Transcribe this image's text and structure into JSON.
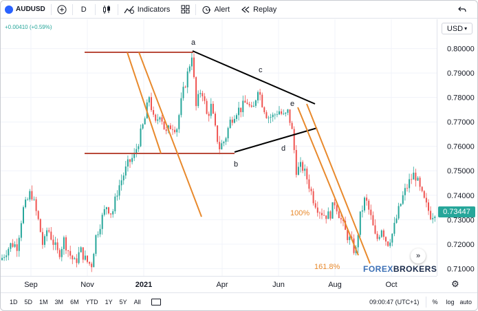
{
  "toolbar": {
    "symbol": "AUDUSD",
    "add_icon": "plus-circle-icon",
    "interval": "D",
    "bar_style_icon": "candles-icon",
    "indicators_label": "Indicators",
    "layouts_icon": "grid-icon",
    "alert_label": "Alert",
    "replay_label": "Replay",
    "undo_icon": "undo-icon"
  },
  "legend": {
    "change": "+0.00410 (+0.59%)"
  },
  "price_axis": {
    "currency": "USD",
    "ticks": [
      "0.80000",
      "0.79000",
      "0.78000",
      "0.77000",
      "0.76000",
      "0.75000",
      "0.74000",
      "0.73000",
      "0.72000",
      "0.71000"
    ],
    "partial_top": "0",
    "last_price": "0.73447"
  },
  "time_axis": {
    "ticks": [
      "Sep",
      "Nov",
      "2021",
      "Apr",
      "Jun",
      "Aug",
      "Oct"
    ]
  },
  "annotations": {
    "a": "a",
    "b": "b",
    "c": "c",
    "d": "d",
    "e": "e",
    "fib_100": "100%",
    "fib_1618": "161.8%"
  },
  "watermark": {
    "part1": "FOREX",
    "part2": "BROKERS"
  },
  "bottom_bar": {
    "ranges": [
      "1D",
      "5D",
      "1M",
      "3M",
      "6M",
      "YTD",
      "1Y",
      "5Y",
      "All"
    ],
    "clock": "09:00:47 (UTC+1)",
    "percent": "%",
    "log": "log",
    "auto": "auto"
  },
  "colors": {
    "up": "#26a69a",
    "down": "#ef5350",
    "horizontal_lines": "#b94a3a",
    "channel_lines": "#e8892c",
    "triangle_lines": "#000000"
  },
  "chart_data": {
    "type": "candlestick",
    "symbol": "AUDUSD",
    "ylim": [
      0.707,
      0.812
    ],
    "close_path": [
      [
        0,
        0.7135
      ],
      [
        8,
        0.7172
      ],
      [
        16,
        0.7203
      ],
      [
        24,
        0.7192
      ],
      [
        32,
        0.7338
      ],
      [
        38,
        0.7371
      ],
      [
        44,
        0.7418
      ],
      [
        50,
        0.7349
      ],
      [
        56,
        0.7281
      ],
      [
        62,
        0.7183
      ],
      [
        68,
        0.727
      ],
      [
        76,
        0.721
      ],
      [
        84,
        0.7155
      ],
      [
        92,
        0.7218
      ],
      [
        100,
        0.7161
      ],
      [
        108,
        0.7121
      ],
      [
        116,
        0.7176
      ],
      [
        124,
        0.7132
      ],
      [
        132,
        0.7114
      ],
      [
        138,
        0.7228
      ],
      [
        146,
        0.7296
      ],
      [
        154,
        0.7358
      ],
      [
        162,
        0.7322
      ],
      [
        170,
        0.7423
      ],
      [
        178,
        0.748
      ],
      [
        186,
        0.7532
      ],
      [
        194,
        0.756
      ],
      [
        202,
        0.7636
      ],
      [
        210,
        0.7716
      ],
      [
        216,
        0.7808
      ],
      [
        224,
        0.7681
      ],
      [
        232,
        0.7742
      ],
      [
        240,
        0.7649
      ],
      [
        248,
        0.7688
      ],
      [
        256,
        0.7674
      ],
      [
        264,
        0.7806
      ],
      [
        272,
        0.79
      ],
      [
        278,
        0.798
      ],
      [
        284,
        0.776
      ],
      [
        292,
        0.7843
      ],
      [
        300,
        0.7722
      ],
      [
        306,
        0.7764
      ],
      [
        312,
        0.7668
      ],
      [
        318,
        0.7594
      ],
      [
        326,
        0.7627
      ],
      [
        334,
        0.7705
      ],
      [
        342,
        0.7745
      ],
      [
        350,
        0.7756
      ],
      [
        358,
        0.7785
      ],
      [
        366,
        0.7733
      ],
      [
        374,
        0.7842
      ],
      [
        380,
        0.778
      ],
      [
        388,
        0.7721
      ],
      [
        396,
        0.7722
      ],
      [
        404,
        0.7749
      ],
      [
        412,
        0.7718
      ],
      [
        418,
        0.7742
      ],
      [
        424,
        0.7655
      ],
      [
        430,
        0.75
      ],
      [
        438,
        0.752
      ],
      [
        446,
        0.7464
      ],
      [
        454,
        0.7389
      ],
      [
        462,
        0.7344
      ],
      [
        470,
        0.7322
      ],
      [
        478,
        0.7316
      ],
      [
        486,
        0.7374
      ],
      [
        494,
        0.7306
      ],
      [
        502,
        0.7244
      ],
      [
        510,
        0.7205
      ],
      [
        516,
        0.7159
      ],
      [
        522,
        0.7305
      ],
      [
        530,
        0.7389
      ],
      [
        538,
        0.7311
      ],
      [
        546,
        0.7211
      ],
      [
        554,
        0.7269
      ],
      [
        562,
        0.7201
      ],
      [
        570,
        0.7246
      ],
      [
        578,
        0.7332
      ],
      [
        586,
        0.7405
      ],
      [
        594,
        0.7454
      ],
      [
        602,
        0.7491
      ],
      [
        610,
        0.7418
      ],
      [
        618,
        0.736
      ],
      [
        626,
        0.7315
      ],
      [
        634,
        0.7345
      ]
    ]
  }
}
